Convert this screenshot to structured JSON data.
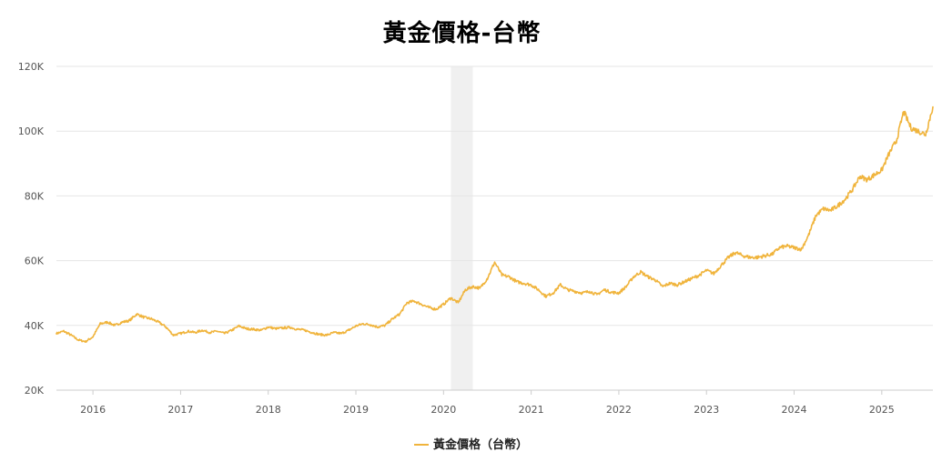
{
  "chart_data": {
    "type": "line",
    "title": "黃金價格-台幣",
    "xlabel": "",
    "ylabel": "",
    "x_ticks": [
      "2016",
      "2017",
      "2018",
      "2019",
      "2020",
      "2021",
      "2022",
      "2023",
      "2024",
      "2025"
    ],
    "y_ticks": [
      "20K",
      "40K",
      "60K",
      "80K",
      "100K",
      "120K"
    ],
    "xlim": [
      "2015-08",
      "2025-08"
    ],
    "ylim": [
      20000,
      120000
    ],
    "grid": true,
    "legend_position": "bottom-center",
    "highlight_band": {
      "from": "2020-02",
      "to": "2020-05"
    },
    "colors": {
      "line": "#f0b43c",
      "band": "#f0f0f0",
      "grid": "#e6e6e6",
      "axis": "#cccccc"
    },
    "series": [
      {
        "name": "黃金價格（台幣）",
        "points": [
          [
            "2015-08",
            37500
          ],
          [
            "2015-09",
            38200
          ],
          [
            "2015-10",
            37000
          ],
          [
            "2015-11",
            35500
          ],
          [
            "2015-12",
            35000
          ],
          [
            "2016-01",
            36500
          ],
          [
            "2016-02",
            40500
          ],
          [
            "2016-03",
            41000
          ],
          [
            "2016-04",
            40000
          ],
          [
            "2016-05",
            41000
          ],
          [
            "2016-06",
            41500
          ],
          [
            "2016-07",
            43500
          ],
          [
            "2016-08",
            42500
          ],
          [
            "2016-09",
            42000
          ],
          [
            "2016-10",
            41000
          ],
          [
            "2016-11",
            39500
          ],
          [
            "2016-12",
            37000
          ],
          [
            "2017-01",
            37500
          ],
          [
            "2017-02",
            38200
          ],
          [
            "2017-03",
            37800
          ],
          [
            "2017-04",
            38500
          ],
          [
            "2017-05",
            37800
          ],
          [
            "2017-06",
            38200
          ],
          [
            "2017-07",
            37500
          ],
          [
            "2017-08",
            38500
          ],
          [
            "2017-09",
            39800
          ],
          [
            "2017-10",
            39000
          ],
          [
            "2017-11",
            38800
          ],
          [
            "2017-12",
            38500
          ],
          [
            "2018-01",
            39500
          ],
          [
            "2018-02",
            39000
          ],
          [
            "2018-03",
            39200
          ],
          [
            "2018-04",
            39400
          ],
          [
            "2018-05",
            38800
          ],
          [
            "2018-06",
            38500
          ],
          [
            "2018-07",
            37800
          ],
          [
            "2018-08",
            37200
          ],
          [
            "2018-09",
            37000
          ],
          [
            "2018-10",
            37800
          ],
          [
            "2018-11",
            37500
          ],
          [
            "2018-12",
            38500
          ],
          [
            "2019-01",
            39800
          ],
          [
            "2019-02",
            40500
          ],
          [
            "2019-03",
            40200
          ],
          [
            "2019-04",
            39500
          ],
          [
            "2019-05",
            40000
          ],
          [
            "2019-06",
            42000
          ],
          [
            "2019-07",
            43500
          ],
          [
            "2019-08",
            47000
          ],
          [
            "2019-09",
            47500
          ],
          [
            "2019-10",
            46500
          ],
          [
            "2019-11",
            45500
          ],
          [
            "2019-12",
            45000
          ],
          [
            "2020-01",
            46500
          ],
          [
            "2020-02",
            48500
          ],
          [
            "2020-03",
            47000
          ],
          [
            "2020-04",
            51000
          ],
          [
            "2020-05",
            52000
          ],
          [
            "2020-06",
            51500
          ],
          [
            "2020-07",
            54500
          ],
          [
            "2020-08",
            59500
          ],
          [
            "2020-09",
            55500
          ],
          [
            "2020-10",
            55000
          ],
          [
            "2020-11",
            53500
          ],
          [
            "2020-12",
            53000
          ],
          [
            "2021-01",
            52500
          ],
          [
            "2021-02",
            51000
          ],
          [
            "2021-03",
            49000
          ],
          [
            "2021-04",
            50000
          ],
          [
            "2021-05",
            52500
          ],
          [
            "2021-06",
            51000
          ],
          [
            "2021-07",
            50500
          ],
          [
            "2021-08",
            50000
          ],
          [
            "2021-09",
            50500
          ],
          [
            "2021-10",
            49500
          ],
          [
            "2021-11",
            51000
          ],
          [
            "2021-12",
            50200
          ],
          [
            "2022-01",
            50000
          ],
          [
            "2022-02",
            52000
          ],
          [
            "2022-03",
            55000
          ],
          [
            "2022-04",
            56500
          ],
          [
            "2022-05",
            55000
          ],
          [
            "2022-06",
            54000
          ],
          [
            "2022-07",
            52000
          ],
          [
            "2022-08",
            53000
          ],
          [
            "2022-09",
            52500
          ],
          [
            "2022-10",
            53500
          ],
          [
            "2022-11",
            54500
          ],
          [
            "2022-12",
            55500
          ],
          [
            "2023-01",
            57000
          ],
          [
            "2023-02",
            56000
          ],
          [
            "2023-03",
            58500
          ],
          [
            "2023-04",
            61000
          ],
          [
            "2023-05",
            62500
          ],
          [
            "2023-06",
            61500
          ],
          [
            "2023-07",
            61000
          ],
          [
            "2023-08",
            61000
          ],
          [
            "2023-09",
            61500
          ],
          [
            "2023-10",
            62000
          ],
          [
            "2023-11",
            64000
          ],
          [
            "2023-12",
            64500
          ],
          [
            "2024-01",
            64000
          ],
          [
            "2024-02",
            63500
          ],
          [
            "2024-03",
            68000
          ],
          [
            "2024-04",
            74000
          ],
          [
            "2024-05",
            76000
          ],
          [
            "2024-06",
            75500
          ],
          [
            "2024-07",
            77000
          ],
          [
            "2024-08",
            79000
          ],
          [
            "2024-09",
            82000
          ],
          [
            "2024-10",
            86000
          ],
          [
            "2024-11",
            85000
          ],
          [
            "2024-12",
            86500
          ],
          [
            "2025-01",
            88000
          ],
          [
            "2025-02",
            93000
          ],
          [
            "2025-03",
            97000
          ],
          [
            "2025-04",
            106000
          ],
          [
            "2025-05",
            101000
          ],
          [
            "2025-06",
            100000
          ],
          [
            "2025-07",
            99000
          ],
          [
            "2025-08",
            107500
          ]
        ]
      }
    ]
  }
}
